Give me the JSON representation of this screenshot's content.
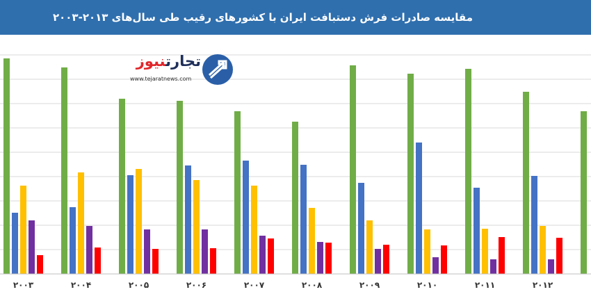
{
  "header": {
    "title": "مقایسه صادرات فرش دستبافت ایران با کشورهای رقیب طی سال‌های ۲۰۱۳-۲۰۰۳"
  },
  "logo": {
    "name_part1": "تجارت",
    "name_part2": "نیوز",
    "url": "www.tejaratnews.com"
  },
  "colors": {
    "header": "#2f6fae",
    "green": "#70ad47",
    "blue": "#4472c4",
    "yellow": "#ffc000",
    "purple": "#7030a0",
    "red": "#ff0000",
    "grid": "#d9d9d9"
  },
  "chart_data": {
    "type": "bar",
    "categories": [
      "۲۰۰۳",
      "۲۰۰۴",
      "۲۰۰۵",
      "۲۰۰۶",
      "۲۰۰۷",
      "۲۰۰۸",
      "۲۰۰۹",
      "۲۰۱۰",
      "۲۰۱۱",
      "۲۰۱۲",
      ""
    ],
    "series": [
      {
        "color": "#70ad47",
        "values": [
          310,
          297,
          252,
          249,
          234,
          219,
          300,
          288,
          295,
          262,
          234
        ]
      },
      {
        "color": "#4472c4",
        "values": [
          88,
          96,
          142,
          156,
          163,
          157,
          131,
          189,
          124,
          141,
          null
        ]
      },
      {
        "color": "#ffc000",
        "values": [
          127,
          146,
          151,
          135,
          127,
          95,
          77,
          64,
          65,
          69,
          null
        ]
      },
      {
        "color": "#7030a0",
        "values": [
          77,
          69,
          64,
          64,
          55,
          46,
          36,
          24,
          21,
          21,
          null
        ]
      },
      {
        "color": "#ff0000",
        "values": [
          27,
          38,
          36,
          37,
          51,
          45,
          42,
          41,
          53,
          52,
          null
        ]
      }
    ],
    "ylim": [
      0,
      340
    ],
    "grid": true,
    "legend": "none"
  }
}
